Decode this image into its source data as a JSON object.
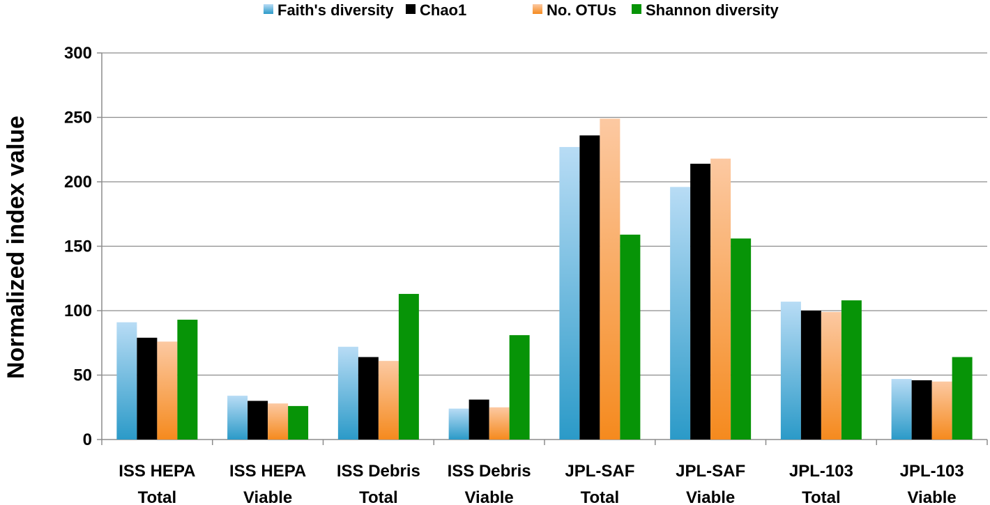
{
  "chart_data": {
    "type": "bar",
    "title": "",
    "xlabel": "",
    "ylabel": "Normalized index value",
    "ylim": [
      0,
      300
    ],
    "yticks": [
      0,
      50,
      100,
      150,
      200,
      250,
      300
    ],
    "grid": true,
    "legend_position": "top",
    "categories": [
      [
        "ISS HEPA",
        "Total"
      ],
      [
        "ISS HEPA",
        "Viable"
      ],
      [
        "ISS Debris",
        "Total"
      ],
      [
        "ISS Debris",
        "Viable"
      ],
      [
        "JPL-SAF",
        "Total"
      ],
      [
        "JPL-SAF",
        "Viable"
      ],
      [
        "JPL-103",
        "Total"
      ],
      [
        "JPL-103",
        "Viable"
      ]
    ],
    "series": [
      {
        "name": "Faith's diversity",
        "color_top": "#b8dcf5",
        "color_bottom": "#2b9ac8",
        "values": [
          91,
          34,
          72,
          24,
          227,
          196,
          107,
          47
        ]
      },
      {
        "name": "Chao1",
        "color_top": "#000000",
        "color_bottom": "#000000",
        "values": [
          79,
          30,
          64,
          31,
          236,
          214,
          100,
          46
        ]
      },
      {
        "name": "No. OTUs",
        "color_top": "#fcc9a2",
        "color_bottom": "#f58a1e",
        "values": [
          76,
          28,
          61,
          25,
          249,
          218,
          99,
          45
        ]
      },
      {
        "name": "Shannon diversity",
        "color_top": "#079407",
        "color_bottom": "#079407",
        "values": [
          93,
          26,
          113,
          81,
          159,
          156,
          108,
          64
        ]
      }
    ]
  }
}
